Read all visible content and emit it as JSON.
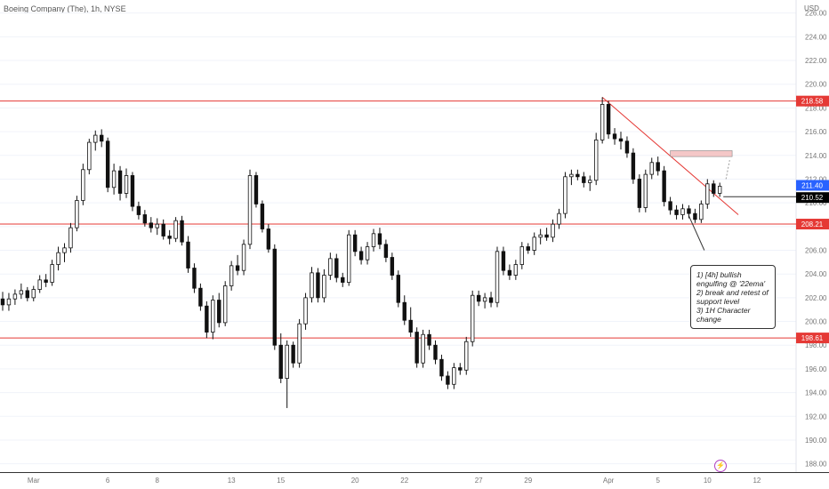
{
  "header": {
    "title": "Boeing Company (The), 1h, NYSE",
    "currency": "USD"
  },
  "annotation": {
    "lines": [
      "1) [4h] bullish",
      "engulfing @ '22ema'",
      "2) break and retest of",
      "support level",
      "3) 1H Character",
      "change"
    ]
  },
  "icons": {
    "alert": "lightning-icon"
  },
  "chart_data": {
    "type": "candlestick",
    "y_ticks": [
      "226.00",
      "224.00",
      "222.00",
      "220.00",
      "218.00",
      "216.00",
      "214.00",
      "212.00",
      "210.00",
      "208.00",
      "206.00",
      "204.00",
      "202.00",
      "200.00",
      "198.00",
      "196.00",
      "194.00",
      "192.00",
      "190.00",
      "188.00"
    ],
    "ylim": [
      187.3,
      227.1
    ],
    "x_ticks": [
      {
        "label": "Mar",
        "index": 5
      },
      {
        "label": "6",
        "index": 17
      },
      {
        "label": "8",
        "index": 25
      },
      {
        "label": "13",
        "index": 37
      },
      {
        "label": "15",
        "index": 45
      },
      {
        "label": "20",
        "index": 57
      },
      {
        "label": "22",
        "index": 65
      },
      {
        "label": "27",
        "index": 77
      },
      {
        "label": "29",
        "index": 85
      },
      {
        "label": "Apr",
        "index": 98
      },
      {
        "label": "5",
        "index": 106
      },
      {
        "label": "10",
        "index": 114
      },
      {
        "label": "12",
        "index": 122
      }
    ],
    "horizontal_levels": [
      {
        "price": 218.58,
        "label": "218.58",
        "color": "#e53935"
      },
      {
        "price": 208.21,
        "label": "208.21",
        "color": "#e53935"
      },
      {
        "price": 198.61,
        "label": "198.61",
        "color": "#e53935"
      }
    ],
    "price_labels": [
      {
        "price": 211.4,
        "label": "211.40",
        "color": "#2962ff"
      },
      {
        "price": 210.52,
        "label": "210.52",
        "color": "#000000"
      }
    ],
    "candles": [
      [
        201.9,
        202.5,
        200.9,
        201.4
      ],
      [
        201.4,
        202.4,
        200.9,
        201.9
      ],
      [
        201.9,
        202.7,
        201.4,
        202.3
      ],
      [
        202.3,
        203.2,
        201.9,
        202.6
      ],
      [
        202.6,
        202.9,
        201.7,
        202.0
      ],
      [
        202.0,
        203.0,
        201.7,
        202.7
      ],
      [
        202.7,
        203.9,
        202.4,
        203.5
      ],
      [
        203.5,
        204.0,
        202.9,
        203.3
      ],
      [
        203.3,
        205.2,
        203.0,
        204.8
      ],
      [
        204.8,
        206.3,
        204.3,
        205.8
      ],
      [
        205.8,
        206.6,
        205.0,
        206.2
      ],
      [
        206.2,
        208.3,
        205.8,
        207.9
      ],
      [
        207.9,
        210.6,
        207.6,
        210.2
      ],
      [
        210.2,
        213.3,
        209.8,
        212.8
      ],
      [
        212.8,
        215.4,
        212.4,
        215.1
      ],
      [
        215.1,
        216.1,
        214.4,
        215.7
      ],
      [
        215.7,
        216.2,
        214.7,
        215.2
      ],
      [
        215.2,
        215.5,
        210.9,
        211.3
      ],
      [
        211.3,
        213.3,
        210.7,
        212.7
      ],
      [
        212.7,
        213.1,
        210.2,
        210.8
      ],
      [
        210.8,
        212.9,
        210.4,
        212.3
      ],
      [
        212.3,
        212.6,
        209.3,
        209.7
      ],
      [
        209.7,
        210.1,
        208.6,
        209.0
      ],
      [
        209.0,
        209.4,
        208.0,
        208.3
      ],
      [
        208.3,
        208.8,
        207.5,
        207.9
      ],
      [
        207.9,
        208.7,
        207.3,
        208.2
      ],
      [
        208.2,
        208.6,
        206.9,
        207.2
      ],
      [
        207.2,
        207.7,
        206.5,
        207.0
      ],
      [
        207.0,
        208.8,
        206.7,
        208.5
      ],
      [
        208.5,
        208.9,
        206.4,
        206.7
      ],
      [
        206.7,
        207.2,
        204.1,
        204.5
      ],
      [
        204.5,
        204.9,
        202.4,
        202.8
      ],
      [
        202.8,
        203.2,
        200.9,
        201.3
      ],
      [
        201.3,
        201.7,
        198.6,
        199.1
      ],
      [
        199.1,
        202.2,
        198.5,
        201.8
      ],
      [
        201.8,
        202.4,
        199.5,
        199.9
      ],
      [
        199.9,
        203.4,
        199.6,
        203.0
      ],
      [
        203.0,
        205.1,
        202.6,
        204.7
      ],
      [
        204.7,
        205.6,
        203.9,
        204.3
      ],
      [
        204.3,
        206.9,
        203.9,
        206.5
      ],
      [
        206.5,
        212.8,
        206.1,
        212.3
      ],
      [
        212.3,
        212.6,
        209.6,
        209.9
      ],
      [
        209.9,
        210.2,
        207.5,
        207.8
      ],
      [
        207.8,
        208.2,
        205.8,
        206.1
      ],
      [
        206.1,
        206.5,
        197.6,
        198.0
      ],
      [
        198.0,
        199.0,
        194.8,
        195.2
      ],
      [
        195.2,
        198.4,
        192.7,
        198.0
      ],
      [
        198.0,
        198.3,
        196.1,
        196.5
      ],
      [
        196.5,
        200.2,
        196.1,
        199.8
      ],
      [
        199.8,
        202.4,
        199.3,
        202.0
      ],
      [
        202.0,
        204.6,
        201.6,
        204.1
      ],
      [
        204.1,
        204.5,
        201.6,
        202.0
      ],
      [
        202.0,
        204.4,
        201.6,
        203.9
      ],
      [
        203.9,
        205.8,
        203.5,
        205.3
      ],
      [
        205.3,
        205.7,
        203.3,
        203.7
      ],
      [
        203.7,
        204.1,
        202.9,
        203.3
      ],
      [
        203.3,
        207.7,
        203.0,
        207.3
      ],
      [
        207.3,
        207.7,
        205.5,
        205.9
      ],
      [
        205.9,
        206.3,
        204.8,
        205.2
      ],
      [
        205.2,
        206.7,
        204.8,
        206.3
      ],
      [
        206.3,
        207.8,
        205.9,
        207.4
      ],
      [
        207.4,
        207.9,
        206.1,
        206.5
      ],
      [
        206.5,
        206.9,
        205.0,
        205.4
      ],
      [
        205.4,
        205.8,
        203.5,
        203.9
      ],
      [
        203.9,
        204.3,
        201.2,
        201.6
      ],
      [
        201.6,
        202.2,
        199.7,
        200.1
      ],
      [
        200.1,
        201.2,
        198.7,
        199.1
      ],
      [
        199.1,
        199.5,
        196.1,
        196.5
      ],
      [
        196.5,
        199.3,
        196.1,
        198.9
      ],
      [
        198.9,
        199.3,
        197.6,
        198.0
      ],
      [
        198.0,
        198.4,
        196.4,
        196.8
      ],
      [
        196.8,
        197.2,
        195.0,
        195.4
      ],
      [
        195.4,
        195.8,
        194.3,
        194.7
      ],
      [
        194.7,
        196.5,
        194.3,
        196.1
      ],
      [
        196.1,
        196.5,
        195.5,
        195.9
      ],
      [
        195.9,
        198.7,
        195.5,
        198.3
      ],
      [
        198.3,
        202.6,
        197.9,
        202.2
      ],
      [
        202.2,
        202.6,
        201.3,
        201.7
      ],
      [
        201.7,
        202.4,
        201.1,
        202.0
      ],
      [
        202.0,
        202.5,
        201.2,
        201.6
      ],
      [
        201.6,
        206.3,
        201.2,
        205.9
      ],
      [
        205.9,
        206.3,
        203.9,
        204.3
      ],
      [
        204.3,
        204.8,
        203.5,
        203.9
      ],
      [
        203.9,
        205.2,
        203.5,
        204.8
      ],
      [
        204.8,
        206.7,
        204.4,
        206.3
      ],
      [
        206.3,
        206.6,
        205.7,
        206.0
      ],
      [
        206.0,
        207.5,
        205.6,
        207.1
      ],
      [
        207.1,
        207.8,
        206.5,
        207.3
      ],
      [
        207.3,
        207.9,
        206.8,
        207.1
      ],
      [
        207.1,
        208.6,
        206.7,
        208.2
      ],
      [
        208.2,
        209.5,
        207.8,
        209.1
      ],
      [
        209.1,
        212.6,
        208.7,
        212.2
      ],
      [
        212.2,
        212.8,
        211.5,
        212.4
      ],
      [
        212.4,
        212.8,
        211.9,
        212.2
      ],
      [
        212.2,
        212.6,
        211.3,
        211.7
      ],
      [
        211.7,
        212.3,
        211.0,
        211.9
      ],
      [
        211.9,
        215.9,
        211.5,
        215.3
      ],
      [
        215.3,
        218.9,
        215.0,
        218.3
      ],
      [
        218.3,
        218.6,
        215.4,
        215.8
      ],
      [
        215.8,
        216.3,
        214.9,
        215.4
      ],
      [
        215.4,
        216.0,
        214.5,
        215.2
      ],
      [
        215.2,
        215.6,
        213.8,
        214.2
      ],
      [
        214.2,
        214.6,
        211.6,
        212.0
      ],
      [
        212.0,
        212.4,
        209.2,
        209.6
      ],
      [
        209.6,
        212.8,
        209.2,
        212.4
      ],
      [
        212.4,
        213.8,
        212.0,
        213.4
      ],
      [
        213.4,
        213.9,
        212.3,
        212.7
      ],
      [
        212.7,
        213.1,
        209.7,
        210.1
      ],
      [
        210.1,
        210.5,
        209.0,
        209.4
      ],
      [
        209.4,
        209.8,
        208.6,
        209.0
      ],
      [
        209.0,
        209.9,
        208.6,
        209.5
      ],
      [
        209.5,
        209.8,
        208.7,
        209.1
      ],
      [
        209.1,
        209.5,
        208.3,
        208.6
      ],
      [
        208.6,
        210.2,
        208.3,
        209.9
      ],
      [
        209.9,
        212.0,
        209.5,
        211.6
      ],
      [
        211.6,
        211.9,
        210.5,
        210.8
      ],
      [
        210.8,
        211.7,
        210.5,
        211.4
      ]
    ]
  }
}
